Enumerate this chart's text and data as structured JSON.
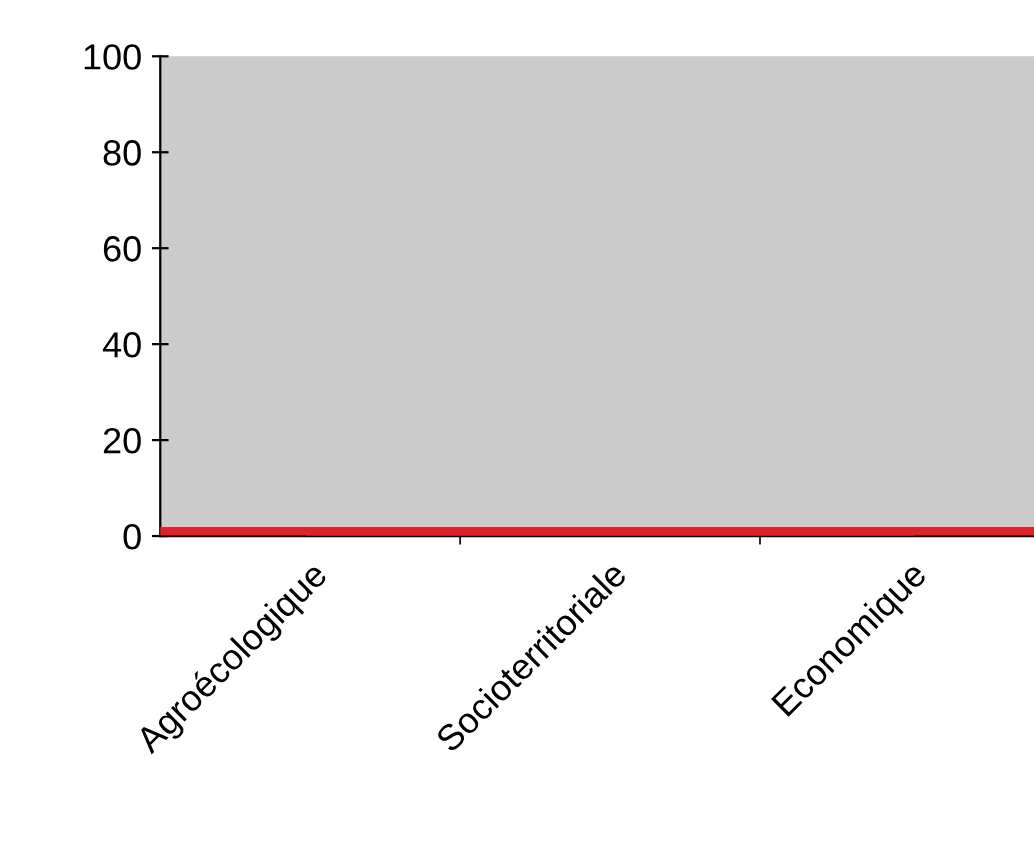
{
  "chart_data": {
    "type": "line",
    "categories": [
      "Agroécologique",
      "Socioterritoriale",
      "Economique"
    ],
    "values": [
      1,
      1,
      1
    ],
    "color": "#e0202a",
    "ylim": [
      0,
      100
    ],
    "yticks": [
      0,
      20,
      40,
      60,
      80,
      100
    ],
    "grid": false,
    "ref_lines": [
      {
        "axis": "y",
        "value": 1,
        "color": "#e0202a"
      }
    ]
  }
}
